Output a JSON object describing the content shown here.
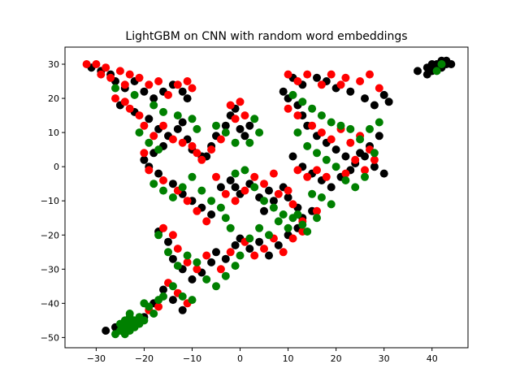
{
  "chart_data": {
    "type": "scatter",
    "title": "LightGBM on CNN with random word embeddings",
    "xlabel": "",
    "ylabel": "",
    "xlim": [
      -36.5,
      47.5
    ],
    "ylim": [
      -53,
      35
    ],
    "xticks": [
      -30,
      -20,
      -10,
      0,
      10,
      20,
      30,
      40
    ],
    "yticks": [
      -50,
      -40,
      -30,
      -20,
      -10,
      0,
      10,
      20,
      30
    ],
    "grid": false,
    "legend": "none",
    "series": [
      {
        "color": "#000000",
        "points": [
          [
            -31,
            29
          ],
          [
            -29,
            28
          ],
          [
            -27,
            27
          ],
          [
            -26,
            25
          ],
          [
            -24,
            23
          ],
          [
            -22,
            25
          ],
          [
            -20,
            22
          ],
          [
            -18,
            20
          ],
          [
            -16,
            22
          ],
          [
            -14,
            24
          ],
          [
            -12,
            22
          ],
          [
            -11,
            20
          ],
          [
            -25,
            18
          ],
          [
            -22,
            16
          ],
          [
            -19,
            14
          ],
          [
            -17,
            11
          ],
          [
            -15,
            9
          ],
          [
            -13,
            11
          ],
          [
            -12,
            13
          ],
          [
            -11,
            8
          ],
          [
            -10,
            5
          ],
          [
            -8,
            3
          ],
          [
            -16,
            6
          ],
          [
            -18,
            4
          ],
          [
            -20,
            2
          ],
          [
            -19,
            0
          ],
          [
            -17,
            -2
          ],
          [
            -14,
            -5
          ],
          [
            -12,
            -8
          ],
          [
            -10,
            -10
          ],
          [
            -8,
            -12
          ],
          [
            -6,
            -14
          ],
          [
            -4,
            -6
          ],
          [
            -2,
            -4
          ],
          [
            -1,
            -6
          ],
          [
            0,
            -8
          ],
          [
            2,
            -5
          ],
          [
            4,
            -9
          ],
          [
            5,
            -13
          ],
          [
            6,
            -7
          ],
          [
            7,
            -10
          ],
          [
            9,
            -6
          ],
          [
            10,
            -9
          ],
          [
            12,
            -12
          ],
          [
            -7,
            3
          ],
          [
            -6,
            6
          ],
          [
            -5,
            9
          ],
          [
            -3,
            12
          ],
          [
            -2,
            15
          ],
          [
            -1,
            17
          ],
          [
            0,
            11
          ],
          [
            1,
            9
          ],
          [
            2,
            12
          ],
          [
            -17,
            -19
          ],
          [
            -15,
            -22
          ],
          [
            -14,
            -27
          ],
          [
            -12,
            -30
          ],
          [
            -10,
            -33
          ],
          [
            -8,
            -31
          ],
          [
            -6,
            -28
          ],
          [
            -5,
            -25
          ],
          [
            -3,
            -27
          ],
          [
            -1,
            -23
          ],
          [
            0,
            -21
          ],
          [
            2,
            -24
          ],
          [
            4,
            -22
          ],
          [
            6,
            -26
          ],
          [
            8,
            -23
          ],
          [
            10,
            -20
          ],
          [
            12,
            -18
          ],
          [
            13,
            -15
          ],
          [
            15,
            -13
          ],
          [
            -16,
            -36
          ],
          [
            -14,
            -39
          ],
          [
            -12,
            -42
          ],
          [
            -18,
            -40
          ],
          [
            -20,
            -44
          ],
          [
            -22,
            -46
          ],
          [
            11,
            26
          ],
          [
            13,
            24
          ],
          [
            16,
            26
          ],
          [
            18,
            25
          ],
          [
            20,
            23
          ],
          [
            23,
            22
          ],
          [
            26,
            20
          ],
          [
            28,
            18
          ],
          [
            30,
            21
          ],
          [
            31,
            19
          ],
          [
            9,
            22
          ],
          [
            10,
            20
          ],
          [
            12,
            18
          ],
          [
            13,
            15
          ],
          [
            14,
            12
          ],
          [
            16,
            9
          ],
          [
            18,
            7
          ],
          [
            20,
            5
          ],
          [
            22,
            3
          ],
          [
            24,
            1
          ],
          [
            26,
            3
          ],
          [
            28,
            0
          ],
          [
            30,
            -2
          ],
          [
            11,
            3
          ],
          [
            13,
            0
          ],
          [
            15,
            -2
          ],
          [
            17,
            -4
          ],
          [
            19,
            -6
          ],
          [
            21,
            -3
          ],
          [
            23,
            -1
          ],
          [
            25,
            4
          ],
          [
            27,
            6
          ],
          [
            29,
            9
          ],
          [
            37,
            28
          ],
          [
            39,
            29
          ],
          [
            40,
            30
          ],
          [
            41,
            30
          ],
          [
            42,
            31
          ],
          [
            43,
            30
          ],
          [
            44,
            30
          ],
          [
            42,
            29
          ],
          [
            40,
            28
          ],
          [
            43,
            31
          ],
          [
            41,
            29
          ],
          [
            39,
            27
          ],
          [
            -28,
            -48
          ],
          [
            -26,
            -47
          ],
          [
            -24,
            -46
          ]
        ]
      },
      {
        "color": "#ff0000",
        "points": [
          [
            -32,
            30
          ],
          [
            -30,
            30
          ],
          [
            -29,
            27
          ],
          [
            -28,
            29
          ],
          [
            -27,
            26
          ],
          [
            -25,
            28
          ],
          [
            -24,
            24
          ],
          [
            -23,
            27
          ],
          [
            -21,
            26
          ],
          [
            -19,
            24
          ],
          [
            -17,
            25
          ],
          [
            -15,
            21
          ],
          [
            -13,
            24
          ],
          [
            -11,
            25
          ],
          [
            -10,
            23
          ],
          [
            -26,
            20
          ],
          [
            -24,
            19
          ],
          [
            -23,
            17
          ],
          [
            -21,
            15
          ],
          [
            -20,
            12
          ],
          [
            -18,
            9
          ],
          [
            -16,
            12
          ],
          [
            -14,
            8
          ],
          [
            -12,
            7
          ],
          [
            -10,
            6
          ],
          [
            -9,
            4
          ],
          [
            -20,
            4
          ],
          [
            -19,
            -1
          ],
          [
            -16,
            -4
          ],
          [
            -13,
            -7
          ],
          [
            -11,
            -10
          ],
          [
            -9,
            -13
          ],
          [
            -7,
            -16
          ],
          [
            -5,
            -3
          ],
          [
            -3,
            -8
          ],
          [
            -1,
            -10
          ],
          [
            1,
            -7
          ],
          [
            3,
            -3
          ],
          [
            5,
            -5
          ],
          [
            7,
            -2
          ],
          [
            8,
            -8
          ],
          [
            10,
            -7
          ],
          [
            11,
            -11
          ],
          [
            13,
            -16
          ],
          [
            -8,
            2
          ],
          [
            -6,
            5
          ],
          [
            -4,
            8
          ],
          [
            -2,
            18
          ],
          [
            0,
            19
          ],
          [
            -1,
            14
          ],
          [
            1,
            15
          ],
          [
            -16,
            -18
          ],
          [
            -14,
            -20
          ],
          [
            -13,
            -24
          ],
          [
            -11,
            -28
          ],
          [
            -9,
            -30
          ],
          [
            -7,
            -26
          ],
          [
            -4,
            -30
          ],
          [
            -2,
            -25
          ],
          [
            1,
            -22
          ],
          [
            3,
            -26
          ],
          [
            5,
            -24
          ],
          [
            7,
            -21
          ],
          [
            9,
            -25
          ],
          [
            11,
            -21
          ],
          [
            13,
            -19
          ],
          [
            16,
            -13
          ],
          [
            -15,
            -34
          ],
          [
            -13,
            -37
          ],
          [
            -11,
            -40
          ],
          [
            -17,
            -41
          ],
          [
            -19,
            -42
          ],
          [
            10,
            27
          ],
          [
            12,
            25
          ],
          [
            14,
            27
          ],
          [
            17,
            24
          ],
          [
            19,
            27
          ],
          [
            21,
            24
          ],
          [
            22,
            26
          ],
          [
            25,
            25
          ],
          [
            27,
            27
          ],
          [
            29,
            23
          ],
          [
            10,
            17
          ],
          [
            12,
            15
          ],
          [
            15,
            12
          ],
          [
            17,
            10
          ],
          [
            19,
            8
          ],
          [
            21,
            11
          ],
          [
            23,
            7
          ],
          [
            25,
            9
          ],
          [
            27,
            5
          ],
          [
            28,
            2
          ],
          [
            12,
            -1
          ],
          [
            14,
            -3
          ],
          [
            16,
            -1
          ],
          [
            18,
            -3
          ],
          [
            22,
            -2
          ],
          [
            24,
            2
          ],
          [
            26,
            -1
          ]
        ]
      },
      {
        "color": "#008000",
        "points": [
          [
            -26,
            23
          ],
          [
            -22,
            21
          ],
          [
            -18,
            18
          ],
          [
            -16,
            16
          ],
          [
            -13,
            15
          ],
          [
            -10,
            14
          ],
          [
            -9,
            11
          ],
          [
            -21,
            10
          ],
          [
            -19,
            7
          ],
          [
            -17,
            5
          ],
          [
            -18,
            -5
          ],
          [
            -16,
            -7
          ],
          [
            -14,
            -9
          ],
          [
            -12,
            -6
          ],
          [
            -10,
            -3
          ],
          [
            -8,
            -7
          ],
          [
            -6,
            -10
          ],
          [
            -4,
            -12
          ],
          [
            -3,
            -15
          ],
          [
            -2,
            -18
          ],
          [
            -1,
            -2
          ],
          [
            1,
            -1
          ],
          [
            3,
            -6
          ],
          [
            5,
            -10
          ],
          [
            7,
            -12
          ],
          [
            9,
            -14
          ],
          [
            11,
            -15
          ],
          [
            13,
            -17
          ],
          [
            14,
            -19
          ],
          [
            16,
            -15
          ],
          [
            -5,
            12
          ],
          [
            -3,
            10
          ],
          [
            -1,
            7
          ],
          [
            2,
            7
          ],
          [
            4,
            10
          ],
          [
            3,
            14
          ],
          [
            -17,
            -20
          ],
          [
            -15,
            -25
          ],
          [
            -13,
            -29
          ],
          [
            -11,
            -26
          ],
          [
            -9,
            -28
          ],
          [
            -7,
            -33
          ],
          [
            -5,
            -35
          ],
          [
            -3,
            -32
          ],
          [
            -1,
            -29
          ],
          [
            0,
            -26
          ],
          [
            2,
            -21
          ],
          [
            4,
            -18
          ],
          [
            6,
            -20
          ],
          [
            8,
            -16
          ],
          [
            10,
            -18
          ],
          [
            12,
            -14
          ],
          [
            -14,
            -35
          ],
          [
            -12,
            -38
          ],
          [
            -10,
            -39
          ],
          [
            -16,
            -38
          ],
          [
            -18,
            -43
          ],
          [
            -20,
            -40
          ],
          [
            -21,
            -44
          ],
          [
            -22,
            -45
          ],
          [
            -23,
            -43
          ],
          [
            -24,
            -47
          ],
          [
            -25,
            -48
          ],
          [
            -23,
            -48
          ],
          [
            -22,
            -46
          ],
          [
            -26,
            -49
          ],
          [
            -24,
            -45
          ],
          [
            -21,
            -46
          ],
          [
            -25,
            -46
          ],
          [
            -23,
            -44
          ],
          [
            -22,
            -47
          ],
          [
            -24,
            -49
          ],
          [
            -20,
            -45
          ],
          [
            -23,
            -46
          ],
          [
            -19,
            -41
          ],
          [
            -17,
            -39
          ],
          [
            11,
            21
          ],
          [
            13,
            19
          ],
          [
            15,
            17
          ],
          [
            17,
            15
          ],
          [
            19,
            13
          ],
          [
            21,
            12
          ],
          [
            23,
            11
          ],
          [
            25,
            8
          ],
          [
            27,
            11
          ],
          [
            29,
            13
          ],
          [
            12,
            10
          ],
          [
            14,
            6
          ],
          [
            16,
            4
          ],
          [
            18,
            2
          ],
          [
            20,
            0
          ],
          [
            22,
            -4
          ],
          [
            24,
            -6
          ],
          [
            26,
            -3
          ],
          [
            28,
            4
          ],
          [
            15,
            -8
          ],
          [
            17,
            -9
          ],
          [
            19,
            -11
          ],
          [
            41,
            28
          ],
          [
            42,
            30
          ]
        ]
      }
    ]
  }
}
